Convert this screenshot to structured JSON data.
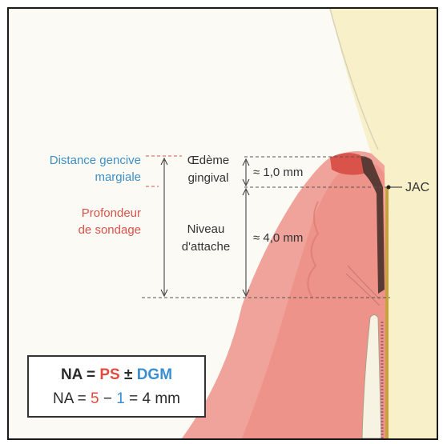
{
  "labels": {
    "distance_line1": "Distance gencive",
    "distance_line2": "margiale",
    "probing_line1": "Profondeur",
    "probing_line2": "de sondage",
    "edema_line1": "Œdème",
    "edema_line2": "gingival",
    "edema_value": "≈ 1,0 mm",
    "attach_line1": "Niveau",
    "attach_line2": "d'attache",
    "attach_value": "≈ 4,0 mm",
    "jac": "JAC"
  },
  "formula": {
    "line1": {
      "na": "NA = ",
      "ps": "PS",
      "pm": " ± ",
      "dgm": "DGM"
    },
    "line2": {
      "na": "NA = ",
      "five": "5",
      "minus": " − ",
      "one": "1",
      "rest": " = 4 mm"
    }
  },
  "colors": {
    "gingiva": "#ec8f86",
    "gingiva_dark": "#d95c50",
    "tooth": "#f7f0c9",
    "root_line": "#c9a13a",
    "blue_text": "#3f8fc4",
    "red_text": "#d9534a"
  }
}
